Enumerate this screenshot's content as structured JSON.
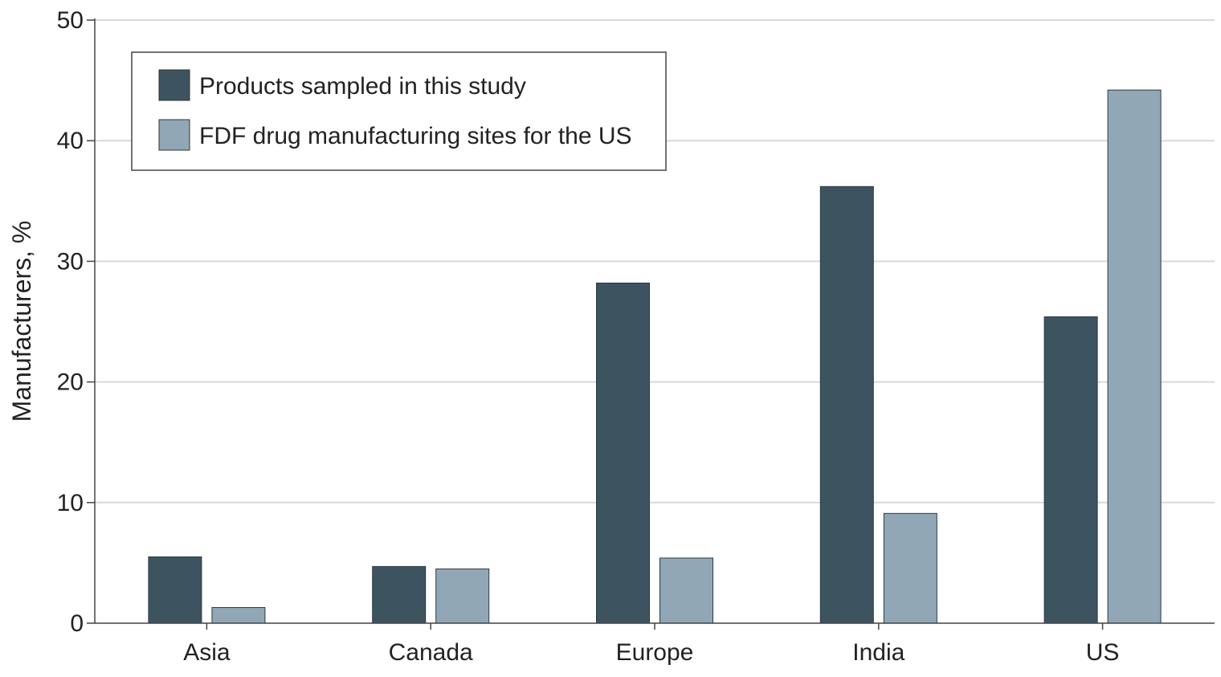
{
  "chart_data": {
    "type": "bar",
    "title": "",
    "xlabel": "",
    "ylabel": "Manufacturers, %",
    "ylim": [
      0,
      50
    ],
    "yticks": [
      0,
      10,
      20,
      30,
      40,
      50
    ],
    "grid": true,
    "legend_position": "top-left",
    "categories": [
      "Asia",
      "Canada",
      "Europe",
      "India",
      "US"
    ],
    "series": [
      {
        "name": "Products sampled in this study",
        "color": "#3e5360",
        "values": [
          5.5,
          4.7,
          28.2,
          36.2,
          25.4
        ]
      },
      {
        "name": "FDF drug manufacturing sites for the US",
        "color": "#91a7b5",
        "values": [
          1.3,
          4.5,
          5.4,
          9.1,
          44.2
        ]
      }
    ]
  }
}
